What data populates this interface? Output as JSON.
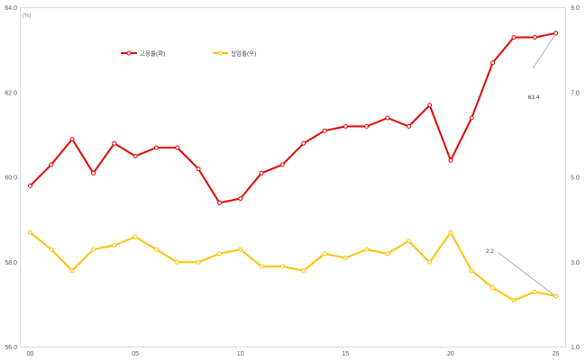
{
  "chart_data": {
    "type": "line",
    "unit_label": "(%)",
    "categories": [
      "00",
      "01",
      "02",
      "03",
      "04",
      "05",
      "06",
      "07",
      "08",
      "09",
      "10",
      "11",
      "12",
      "13",
      "14",
      "15",
      "16",
      "17",
      "18",
      "19",
      "20",
      "21",
      "22",
      "23",
      "24",
      "25"
    ],
    "x_tick_labels": [
      "00",
      "05",
      "10",
      "15",
      "20",
      "25"
    ],
    "series": [
      {
        "key": "employment-rate",
        "name": "고용률(좌)",
        "axis": "left",
        "color": "#e60000",
        "values": [
          59.8,
          60.3,
          60.9,
          60.1,
          60.8,
          60.5,
          60.7,
          60.7,
          60.2,
          59.4,
          59.5,
          60.1,
          60.3,
          60.8,
          61.1,
          61.2,
          61.2,
          61.4,
          61.2,
          61.7,
          60.4,
          61.4,
          62.7,
          63.3,
          63.3,
          63.4
        ]
      },
      {
        "key": "unemployment-rate",
        "name": "실업률(우)",
        "axis": "right",
        "color": "#ffc000",
        "values": [
          3.7,
          3.3,
          2.8,
          3.3,
          3.4,
          3.6,
          3.3,
          3.0,
          3.0,
          3.2,
          3.3,
          2.9,
          2.9,
          2.8,
          3.2,
          3.1,
          3.3,
          3.2,
          3.5,
          3.0,
          3.7,
          2.8,
          2.4,
          2.1,
          2.3,
          2.2
        ]
      }
    ],
    "left_axis": {
      "min": 56.0,
      "max": 64.0,
      "step": 2.0,
      "tick_labels_top_to_bottom": [
        "64.0",
        "62.0",
        "60.0",
        "58.0",
        "56.0"
      ]
    },
    "right_axis": {
      "min": 1.0,
      "max": 9.0,
      "step": 2.0,
      "tick_labels_top_to_bottom": [
        "9.0",
        "7.0",
        "5.0",
        "3.0",
        "1.0"
      ]
    },
    "annotations": [
      {
        "text": "63.4",
        "series": "employment-rate",
        "category": "25",
        "value": 63.4
      },
      {
        "text": "2.2",
        "series": "unemployment-rate",
        "category": "25",
        "value": 2.2
      }
    ],
    "grid": false,
    "legend_position": "top-inside",
    "colors": {
      "axis_text": "#595959",
      "plot_border": "#d9d9d9",
      "leader_line": "#a6a6a6",
      "marker_fill": "#ffffff"
    }
  }
}
